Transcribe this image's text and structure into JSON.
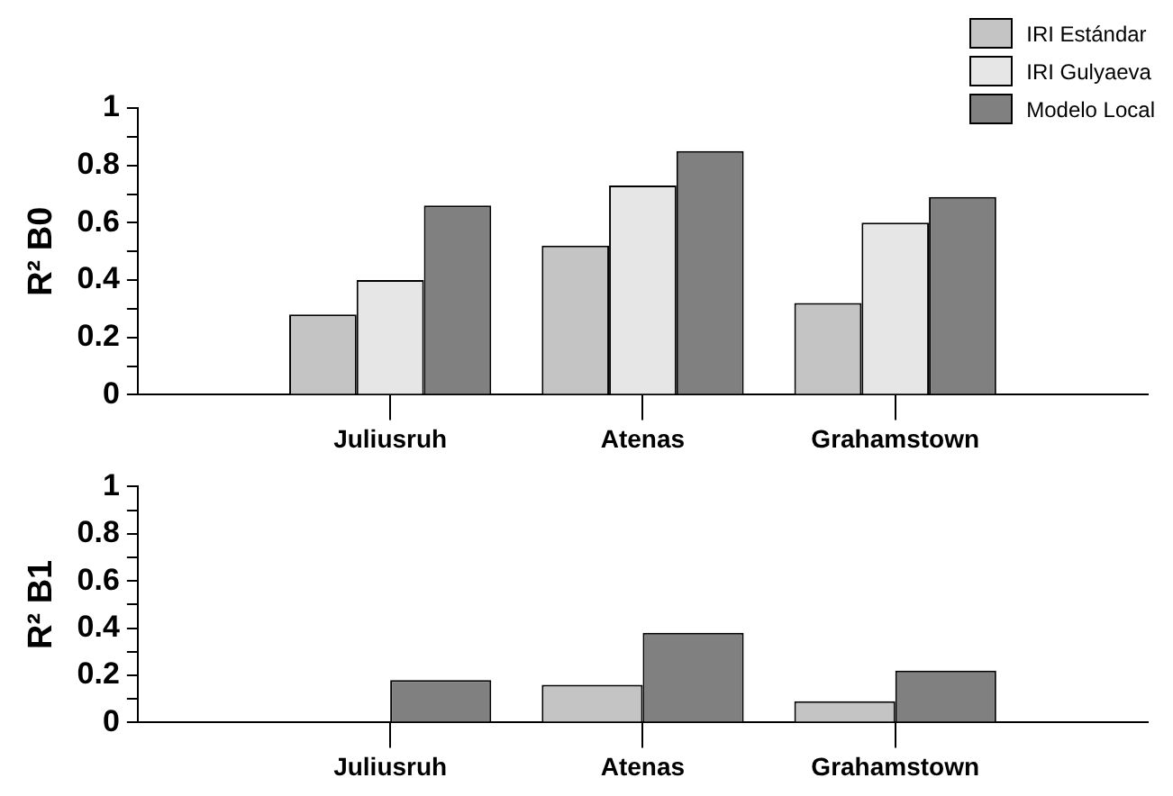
{
  "chart_data": [
    {
      "type": "bar",
      "ylabel": "R² B0",
      "categories": [
        null,
        "Juliusruh",
        "Atenas",
        "Grahamstown",
        null
      ],
      "series": [
        {
          "name": "IRI Estándar",
          "color": "#c4c4c4",
          "values": [
            null,
            0.28,
            0.52,
            0.32,
            null
          ]
        },
        {
          "name": "IRI Gulyaeva",
          "color": "#e6e6e6",
          "values": [
            null,
            0.4,
            0.73,
            0.6,
            null
          ]
        },
        {
          "name": "Modelo Local",
          "color": "#808080",
          "values": [
            null,
            0.66,
            0.85,
            0.69,
            null
          ]
        }
      ],
      "ylim": [
        0,
        1
      ],
      "yticks": [
        0,
        {
          "value": 0.1,
          "label": null
        },
        0.2,
        {
          "value": 0.3,
          "label": null
        },
        0.4,
        {
          "value": 0.5,
          "label": null
        },
        0.6,
        {
          "value": 0.7,
          "label": null
        },
        0.8,
        {
          "value": 0.9,
          "label": null
        },
        1
      ],
      "legend": "top right"
    },
    {
      "type": "bar",
      "ylabel": "R² B1",
      "categories": [
        null,
        "Juliusruh",
        "Atenas",
        "Grahamstown",
        null
      ],
      "series": [
        {
          "color": "#c4c4c4",
          "values": [
            null,
            0,
            0.16,
            0.09,
            null
          ]
        },
        {
          "color": "#808080",
          "values": [
            null,
            0.18,
            0.38,
            0.22,
            null
          ]
        }
      ],
      "ylim": [
        0,
        1
      ],
      "yticks": [
        0,
        {
          "value": 0.1,
          "label": null
        },
        0.2,
        {
          "value": 0.3,
          "label": null
        },
        0.4,
        {
          "value": 0.5,
          "label": null
        },
        0.6,
        {
          "value": 0.7,
          "label": null
        },
        0.8,
        {
          "value": 0.9,
          "label": null
        },
        1
      ]
    }
  ]
}
